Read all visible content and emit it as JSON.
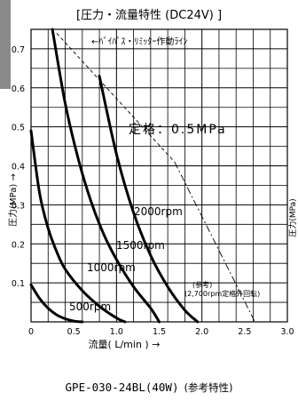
{
  "chart_data": {
    "type": "line",
    "title": "[圧力・流量特性 (DC24V) ]",
    "xlabel": "流量( L/min ) →",
    "ylabel": "圧力(MPa) →",
    "right_axis_fragment": "圧力(MPa)",
    "xlim": [
      0,
      3.0
    ],
    "ylim": [
      0,
      0.75
    ],
    "x_ticks": [
      "0",
      "0.5",
      "1.0",
      "1.5",
      "2.0",
      "2.5",
      "3.0"
    ],
    "y_ticks": [
      "0.1",
      "0.2",
      "0.3",
      "0.4",
      "0.5",
      "0.6",
      "0.7"
    ],
    "grid": true,
    "series": [
      {
        "name": "500rpm",
        "x": [
          0,
          0.1,
          0.2,
          0.3,
          0.4,
          0.5,
          0.6
        ],
        "y": [
          0.095,
          0.06,
          0.035,
          0.018,
          0.008,
          0.002,
          0
        ]
      },
      {
        "name": "1000rpm",
        "x": [
          0,
          0.1,
          0.2,
          0.3,
          0.4,
          0.6,
          0.8,
          1.0,
          1.1
        ],
        "y": [
          0.49,
          0.33,
          0.24,
          0.18,
          0.135,
          0.08,
          0.04,
          0.01,
          0
        ]
      },
      {
        "name": "1500rpm",
        "x": [
          0.25,
          0.4,
          0.55,
          0.7,
          0.85,
          1.0,
          1.2,
          1.4,
          1.5
        ],
        "y": [
          0.75,
          0.56,
          0.42,
          0.31,
          0.225,
          0.16,
          0.09,
          0.035,
          0
        ]
      },
      {
        "name": "2000rpm",
        "x": [
          0.8,
          1.0,
          1.2,
          1.4,
          1.6,
          1.8,
          1.95
        ],
        "y": [
          0.63,
          0.43,
          0.28,
          0.17,
          0.09,
          0.03,
          0
        ]
      }
    ],
    "reference_lines": [
      {
        "name": "bypass-relief-line",
        "style": "dashed",
        "x": [
          0.3,
          1.68
        ],
        "y": [
          0.74,
          0.41
        ]
      },
      {
        "name": "rated-2700rpm-line",
        "style": "dashdot",
        "x": [
          1.68,
          2.62
        ],
        "y": [
          0.41,
          0.0
        ]
      }
    ],
    "annotations": {
      "relief_line": "←ﾊﾞｲﾊﾟｽ・ﾘﾐｯﾀｰ作動ﾗｲﾝ",
      "rated": "定格：0.5MPa",
      "reference_line1": "(参考)",
      "reference_line2": "(2,700rpm定格外回転)"
    }
  },
  "footer": {
    "model": "GPE-030-24BL(40W)",
    "note": "(参考特性)"
  }
}
